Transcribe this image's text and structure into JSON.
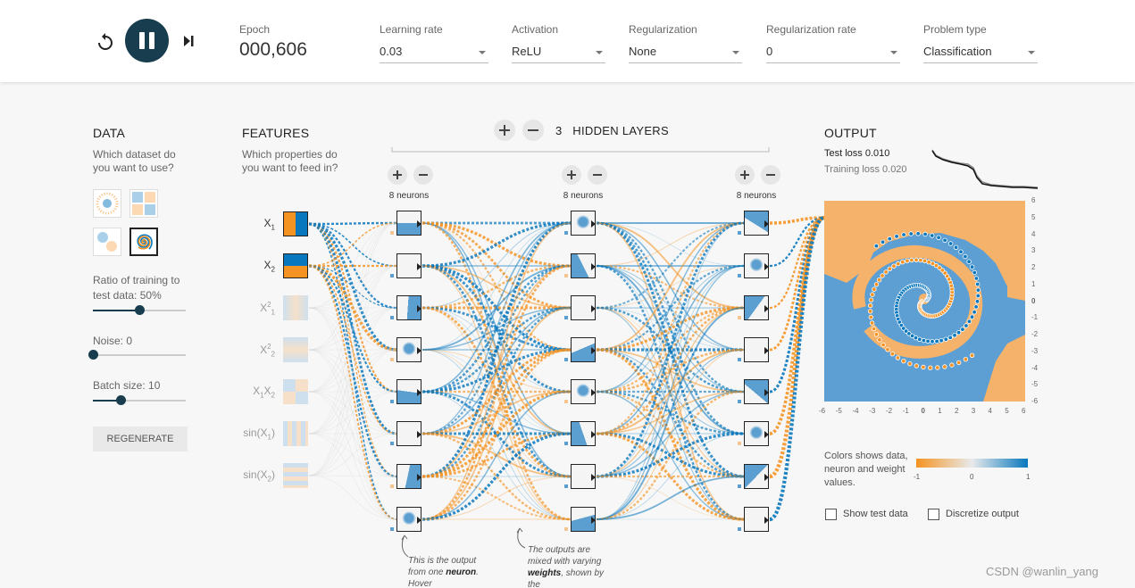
{
  "colors": {
    "orange": "#f59322",
    "blue": "#0877bd",
    "dark": "#183d4e"
  },
  "toolbar": {
    "reset_icon": "reset-icon",
    "play_icon": "pause-icon",
    "step_icon": "step-icon",
    "epoch_label": "Epoch",
    "epoch_value": "000,606",
    "learning_rate": {
      "label": "Learning rate",
      "value": "0.03"
    },
    "activation": {
      "label": "Activation",
      "value": "ReLU"
    },
    "regularization": {
      "label": "Regularization",
      "value": "None"
    },
    "regularization_rate": {
      "label": "Regularization rate",
      "value": "0"
    },
    "problem_type": {
      "label": "Problem type",
      "value": "Classification"
    }
  },
  "data_panel": {
    "title": "DATA",
    "subtitle_1": "Which dataset do",
    "subtitle_2": "you want to use?",
    "datasets": [
      "circle",
      "xor",
      "gaussian",
      "spiral"
    ],
    "selected_dataset": "spiral",
    "ratio_label": "Ratio of training to",
    "ratio_label_2": "test data:",
    "ratio_value": "50%",
    "ratio_fraction": 0.5,
    "noise_label": "Noise:",
    "noise_value": "0",
    "noise_fraction": 0,
    "batch_label": "Batch size:",
    "batch_value": "10",
    "batch_fraction": 0.3,
    "regenerate_label": "REGENERATE"
  },
  "features_panel": {
    "title": "FEATURES",
    "subtitle_1": "Which properties do",
    "subtitle_2": "you want to feed in?",
    "features": [
      {
        "base": "X",
        "sub": "1",
        "sup": "",
        "active": true
      },
      {
        "base": "X",
        "sub": "2",
        "sup": "",
        "active": true
      },
      {
        "base": "X",
        "sub": "1",
        "sup": "2",
        "active": false
      },
      {
        "base": "X",
        "sub": "2",
        "sup": "2",
        "active": false
      },
      {
        "base": "X",
        "sub": "1",
        "sup": "",
        "base2": "X",
        "sub2": "2",
        "active": false
      },
      {
        "base": "sin(X",
        "sub": "1",
        "sup": "",
        "tail": ")",
        "active": false
      },
      {
        "base": "sin(X",
        "sub": "2",
        "sup": "",
        "tail": ")",
        "active": false
      }
    ]
  },
  "network": {
    "hidden_layers_count": "3",
    "hidden_layers_label": "HIDDEN LAYERS",
    "layers": [
      {
        "neurons_label": "8 neurons"
      },
      {
        "neurons_label": "8 neurons"
      },
      {
        "neurons_label": "8 neurons"
      }
    ]
  },
  "output_panel": {
    "title": "OUTPUT",
    "test_loss_label": "Test loss",
    "test_loss_value": "0.010",
    "training_loss_label": "Training loss",
    "training_loss_value": "0.020",
    "x_ticks": [
      "-6",
      "-5",
      "-4",
      "-3",
      "-2",
      "-1",
      "0",
      "1",
      "2",
      "3",
      "4",
      "5",
      "6"
    ],
    "y_ticks": [
      "6",
      "5",
      "4",
      "3",
      "2",
      "1",
      "0",
      "-1",
      "-2",
      "-3",
      "-4",
      "-5",
      "-6"
    ],
    "legend_text": "Colors shows data, neuron and weight values.",
    "legend_min": "-1",
    "legend_mid": "0",
    "legend_max": "1",
    "show_test_label": "Show test data",
    "discretize_label": "Discretize output"
  },
  "notes": {
    "note1_a": "This is the output from one",
    "note1_b": "neuron",
    "note1_c": ". Hover",
    "note2_a": "The outputs are mixed with varying",
    "note2_b": "weights",
    "note2_c": ",",
    "note2_d": "shown by the"
  },
  "watermark": "CSDN @wanlin_yang"
}
